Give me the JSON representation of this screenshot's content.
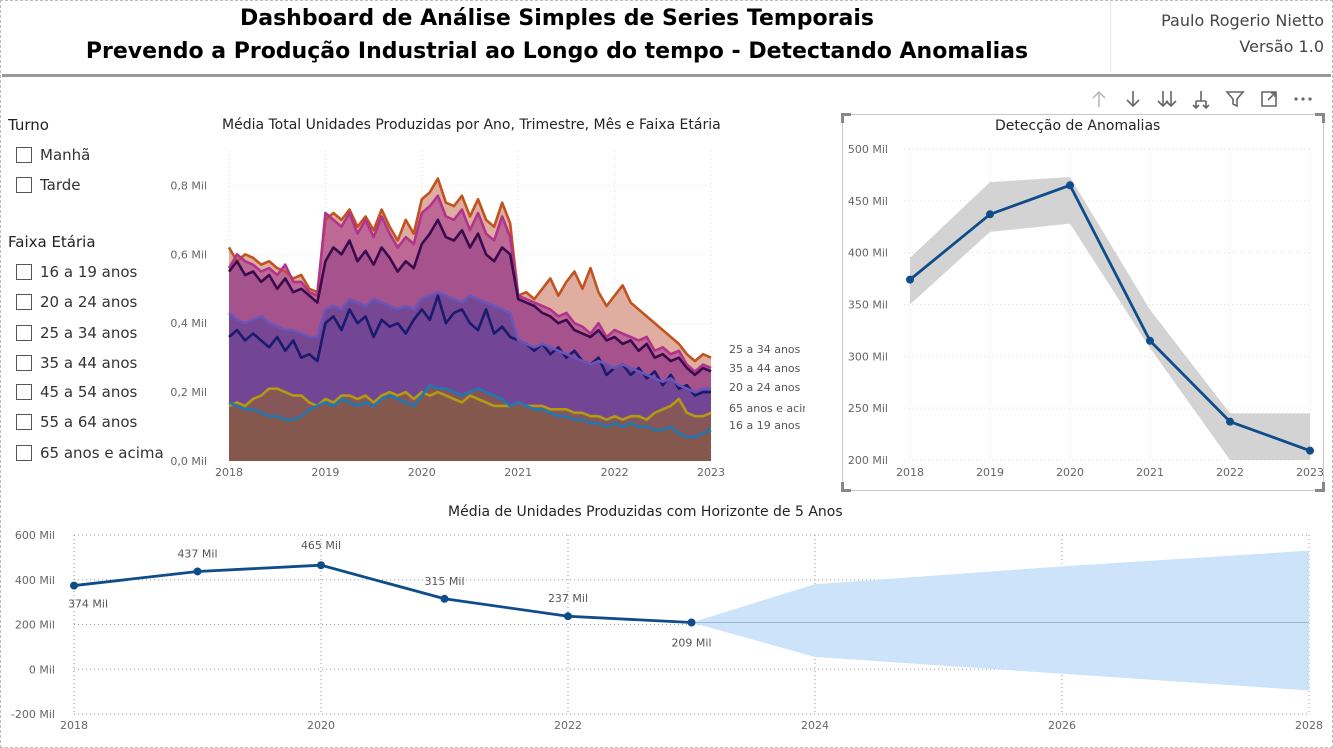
{
  "header": {
    "title_line1": "Dashboard de Análise Simples de Series Temporais",
    "title_line2": "Prevendo a Produção Industrial ao Longo do tempo - Detectando Anomalias",
    "author": "Paulo Rogerio Nietto",
    "version": "Versão 1.0"
  },
  "slicers": {
    "turno": {
      "title": "Turno",
      "items": [
        "Manhã",
        "Tarde"
      ]
    },
    "faixa": {
      "title": "Faixa Etária",
      "items": [
        "16 a 19 anos",
        "20 a 24 anos",
        "25 a 34 anos",
        "35 a 44 anos",
        "45 a 54 anos",
        "55 a 64 anos",
        "65 anos e acima"
      ]
    }
  },
  "toolbar": {
    "icons": [
      "arrow-up-icon",
      "arrow-down-icon",
      "double-arrow-down-icon",
      "expand-hierarchy-icon",
      "filter-icon",
      "focus-mode-icon",
      "more-options-icon"
    ]
  },
  "chart_data": [
    {
      "type": "area",
      "title": "Média Total Unidades Produzidas por Ano, Trimestre, Mês e Faixa Etária",
      "x_ticks": [
        "2018",
        "2019",
        "2020",
        "2021",
        "2022",
        "2023"
      ],
      "y_ticks": [
        "0,0 Mil",
        "0,2 Mil",
        "0,4 Mil",
        "0,6 Mil",
        "0,8 Mil"
      ],
      "ylim": [
        0,
        0.9
      ],
      "x_start": 2018,
      "x_end": 2023,
      "months": 61,
      "series": [
        {
          "name": "16 a 19 anos",
          "color": "#1F77B4",
          "values": [
            0.17,
            0.16,
            0.15,
            0.15,
            0.14,
            0.13,
            0.13,
            0.12,
            0.12,
            0.13,
            0.15,
            0.16,
            0.17,
            0.16,
            0.18,
            0.17,
            0.16,
            0.17,
            0.16,
            0.18,
            0.19,
            0.18,
            0.17,
            0.16,
            0.19,
            0.22,
            0.21,
            0.21,
            0.2,
            0.19,
            0.2,
            0.21,
            0.2,
            0.19,
            0.18,
            0.16,
            0.17,
            0.16,
            0.15,
            0.15,
            0.14,
            0.13,
            0.13,
            0.12,
            0.12,
            0.11,
            0.11,
            0.1,
            0.11,
            0.1,
            0.11,
            0.1,
            0.1,
            0.09,
            0.09,
            0.1,
            0.08,
            0.07,
            0.07,
            0.08,
            0.09
          ]
        },
        {
          "name": "65 anos e acima",
          "color": "#B39A10",
          "values": [
            0.16,
            0.17,
            0.16,
            0.18,
            0.19,
            0.21,
            0.21,
            0.2,
            0.19,
            0.19,
            0.17,
            0.16,
            0.18,
            0.17,
            0.19,
            0.19,
            0.18,
            0.19,
            0.17,
            0.19,
            0.2,
            0.19,
            0.2,
            0.18,
            0.2,
            0.19,
            0.2,
            0.19,
            0.18,
            0.17,
            0.19,
            0.18,
            0.17,
            0.16,
            0.16,
            0.16,
            0.17,
            0.16,
            0.16,
            0.16,
            0.15,
            0.15,
            0.15,
            0.14,
            0.14,
            0.13,
            0.13,
            0.12,
            0.13,
            0.12,
            0.13,
            0.13,
            0.12,
            0.14,
            0.15,
            0.16,
            0.18,
            0.14,
            0.13,
            0.13,
            0.14
          ]
        },
        {
          "name": "20 a 24 anos",
          "color": "#6A55B8",
          "values": [
            0.43,
            0.41,
            0.4,
            0.41,
            0.42,
            0.4,
            0.39,
            0.38,
            0.38,
            0.37,
            0.36,
            0.36,
            0.44,
            0.45,
            0.44,
            0.47,
            0.46,
            0.45,
            0.47,
            0.46,
            0.45,
            0.44,
            0.45,
            0.44,
            0.47,
            0.48,
            0.49,
            0.48,
            0.47,
            0.46,
            0.48,
            0.47,
            0.46,
            0.45,
            0.44,
            0.43,
            0.35,
            0.34,
            0.33,
            0.34,
            0.33,
            0.32,
            0.31,
            0.3,
            0.29,
            0.28,
            0.29,
            0.28,
            0.27,
            0.28,
            0.27,
            0.26,
            0.25,
            0.24,
            0.23,
            0.24,
            0.22,
            0.21,
            0.2,
            0.21,
            0.21
          ]
        },
        {
          "name": "",
          "color": "#1A1A6E",
          "values": [
            0.36,
            0.38,
            0.35,
            0.37,
            0.35,
            0.33,
            0.36,
            0.32,
            0.35,
            0.3,
            0.31,
            0.29,
            0.4,
            0.42,
            0.38,
            0.44,
            0.4,
            0.42,
            0.36,
            0.41,
            0.39,
            0.4,
            0.37,
            0.41,
            0.44,
            0.41,
            0.48,
            0.4,
            0.43,
            0.44,
            0.4,
            0.38,
            0.44,
            0.37,
            0.39,
            0.36,
            0.35,
            0.34,
            0.32,
            0.34,
            0.31,
            0.33,
            0.3,
            0.32,
            0.29,
            0.28,
            0.3,
            0.25,
            0.27,
            0.28,
            0.25,
            0.27,
            0.24,
            0.26,
            0.22,
            0.25,
            0.21,
            0.22,
            0.19,
            0.2,
            0.2
          ]
        },
        {
          "name": "35 a 44 anos",
          "color": "#3A0A4E",
          "values": [
            0.55,
            0.58,
            0.54,
            0.55,
            0.52,
            0.54,
            0.5,
            0.53,
            0.49,
            0.5,
            0.48,
            0.46,
            0.58,
            0.62,
            0.6,
            0.64,
            0.58,
            0.61,
            0.57,
            0.62,
            0.59,
            0.55,
            0.58,
            0.56,
            0.63,
            0.66,
            0.7,
            0.65,
            0.64,
            0.67,
            0.62,
            0.66,
            0.6,
            0.58,
            0.62,
            0.6,
            0.47,
            0.46,
            0.45,
            0.43,
            0.42,
            0.4,
            0.41,
            0.38,
            0.37,
            0.36,
            0.38,
            0.35,
            0.36,
            0.34,
            0.35,
            0.32,
            0.34,
            0.3,
            0.31,
            0.29,
            0.3,
            0.27,
            0.25,
            0.27,
            0.26
          ]
        },
        {
          "name": "",
          "color": "#B0338C",
          "values": [
            0.56,
            0.6,
            0.58,
            0.57,
            0.55,
            0.56,
            0.54,
            0.57,
            0.52,
            0.52,
            0.49,
            0.48,
            0.72,
            0.7,
            0.68,
            0.72,
            0.66,
            0.7,
            0.65,
            0.71,
            0.66,
            0.62,
            0.65,
            0.63,
            0.72,
            0.74,
            0.77,
            0.71,
            0.7,
            0.73,
            0.67,
            0.72,
            0.66,
            0.64,
            0.71,
            0.65,
            0.48,
            0.47,
            0.46,
            0.45,
            0.44,
            0.42,
            0.43,
            0.4,
            0.39,
            0.37,
            0.4,
            0.36,
            0.38,
            0.37,
            0.36,
            0.35,
            0.36,
            0.32,
            0.33,
            0.31,
            0.32,
            0.28,
            0.26,
            0.28,
            0.27
          ]
        },
        {
          "name": "25 a 34 anos",
          "color": "#C0531F",
          "values": [
            0.62,
            0.58,
            0.6,
            0.59,
            0.57,
            0.58,
            0.56,
            0.55,
            0.53,
            0.54,
            0.5,
            0.49,
            0.7,
            0.72,
            0.7,
            0.73,
            0.68,
            0.71,
            0.67,
            0.73,
            0.68,
            0.64,
            0.7,
            0.66,
            0.76,
            0.78,
            0.82,
            0.75,
            0.74,
            0.77,
            0.71,
            0.76,
            0.7,
            0.68,
            0.75,
            0.69,
            0.48,
            0.49,
            0.47,
            0.5,
            0.53,
            0.48,
            0.52,
            0.55,
            0.5,
            0.56,
            0.49,
            0.45,
            0.48,
            0.51,
            0.46,
            0.44,
            0.42,
            0.4,
            0.38,
            0.36,
            0.34,
            0.31,
            0.29,
            0.31,
            0.3
          ]
        }
      ],
      "end_labels": [
        "25 a 34 anos",
        "35 a 44 anos",
        "20 a 24 anos",
        "65 anos e acima",
        "16 a 19 anos"
      ]
    },
    {
      "type": "line",
      "title": "Detecção de Anomalias",
      "x": [
        2018,
        2019,
        2020,
        2021,
        2022,
        2023
      ],
      "x_ticks": [
        "2018",
        "2019",
        "2020",
        "2021",
        "2022",
        "2023"
      ],
      "values": [
        374,
        437,
        465,
        315,
        237,
        209
      ],
      "band_upper": [
        395,
        468,
        473,
        345,
        245,
        245
      ],
      "band_lower": [
        350,
        420,
        428,
        308,
        200,
        200
      ],
      "ylim": [
        200,
        500
      ],
      "y_ticks": [
        "200 Mil",
        "250 Mil",
        "300 Mil",
        "350 Mil",
        "400 Mil",
        "450 Mil",
        "500 Mil"
      ],
      "line_color": "#0E4C8A",
      "band_color": "#D3D3D3"
    },
    {
      "type": "line",
      "title": "Média de Unidades Produzidas com Horizonte de 5 Anos",
      "x": [
        2018,
        2019,
        2020,
        2021,
        2022,
        2023
      ],
      "values": [
        374,
        437,
        465,
        315,
        237,
        209
      ],
      "data_labels": [
        "374 Mil",
        "437 Mil",
        "465 Mil",
        "315 Mil",
        "237 Mil",
        "209 Mil"
      ],
      "forecast": {
        "x": [
          2023,
          2024,
          2026,
          2028
        ],
        "upper": [
          209,
          380,
          460,
          530
        ],
        "center": [
          209,
          209,
          209,
          209
        ],
        "lower": [
          209,
          55,
          -20,
          -95
        ]
      },
      "xlim": [
        2018,
        2028
      ],
      "x_ticks": [
        "2018",
        "2020",
        "2022",
        "2024",
        "2026",
        "2028"
      ],
      "ylim": [
        -200,
        600
      ],
      "y_ticks": [
        "-200 Mil",
        "0 Mil",
        "200 Mil",
        "400 Mil",
        "600 Mil"
      ],
      "line_color": "#0E4C8A",
      "forecast_color": "#CCE3FA"
    }
  ]
}
